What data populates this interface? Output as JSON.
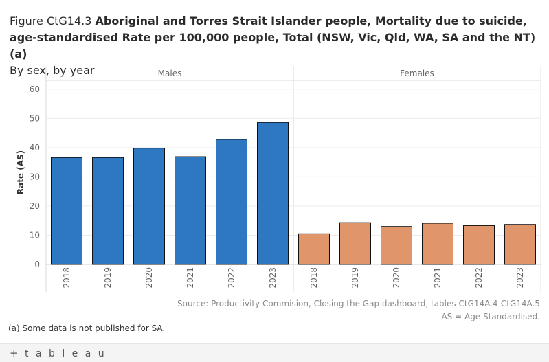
{
  "title": {
    "prefix": "Figure CtG14.3 ",
    "main": "Aboriginal and Torres Strait Islander people, Mortality due to suicide, age-standardised Rate per 100,000 people, Total (NSW, Vic, Qld, WA, SA and the NT)  (a)",
    "subtitle": "By sex, by year"
  },
  "chart_data": {
    "type": "bar",
    "ylabel": "Rate (AS)",
    "xlabel": "",
    "ylim": [
      0,
      63
    ],
    "yticks": [
      0,
      10,
      20,
      30,
      40,
      50,
      60
    ],
    "ytick_labels": [
      "0",
      "10",
      "20",
      "30",
      "40",
      "50",
      "60"
    ],
    "grid": true,
    "panels": [
      {
        "name": "Males",
        "color": "#2e78c1",
        "categories": [
          "2018",
          "2019",
          "2020",
          "2021",
          "2022",
          "2023"
        ],
        "values": [
          36.6,
          36.6,
          39.8,
          36.9,
          42.8,
          48.6
        ]
      },
      {
        "name": "Females",
        "color": "#e0956b",
        "categories": [
          "2018",
          "2019",
          "2020",
          "2021",
          "2022",
          "2023"
        ],
        "values": [
          10.5,
          14.3,
          13.0,
          14.1,
          13.3,
          13.7
        ]
      }
    ]
  },
  "source": {
    "line1": "Source: Productivity Commision, Closing the Gap dashboard, tables CtG14A.4-CtG14A.5",
    "line2": "AS = Age Standardised."
  },
  "note": "(a) Some data is not published for SA.",
  "footer": {
    "brand": "tableau"
  }
}
